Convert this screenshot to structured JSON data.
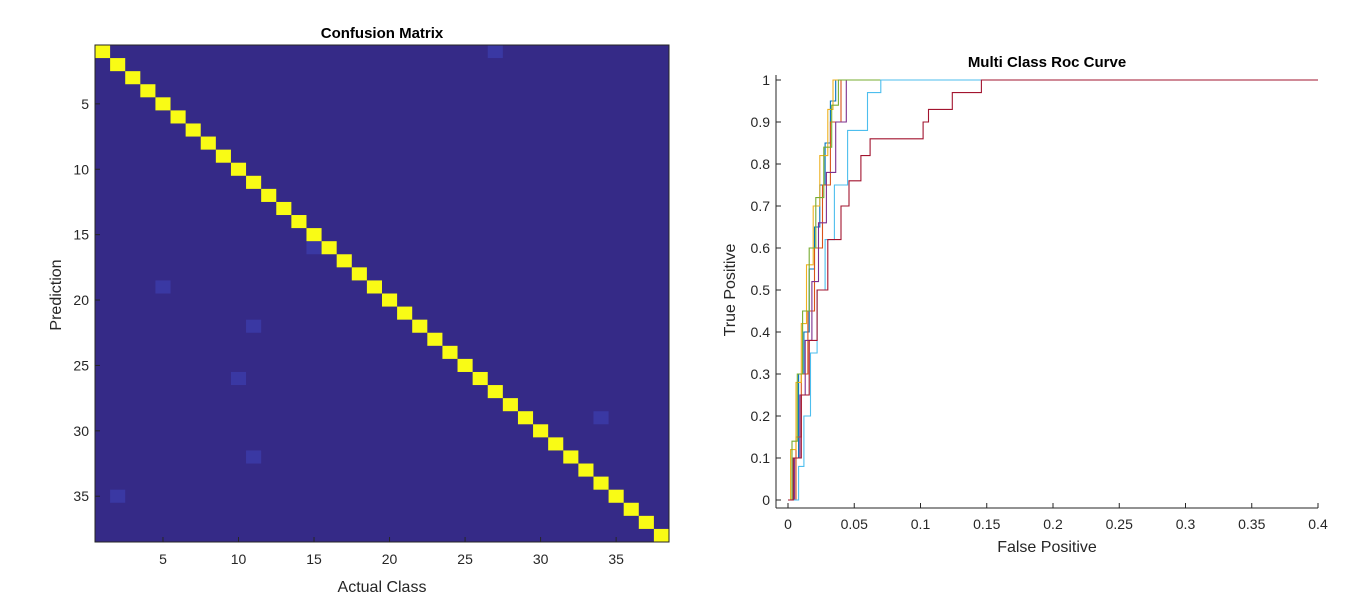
{
  "colors": {
    "background": "#352A87",
    "offdiag": "#3A38A3",
    "diagonal": "#F9FB15",
    "axis": "#262626",
    "roc_series": [
      "#0072BD",
      "#D95319",
      "#EDB120",
      "#7E2F8E",
      "#77AC30",
      "#4DBEEE",
      "#A2142F"
    ]
  },
  "chart_data": [
    {
      "type": "heatmap",
      "title": "Confusion Matrix",
      "xlabel": "Actual Class",
      "ylabel": "Prediction",
      "n_classes": 38,
      "xlim": [
        0.5,
        38.5
      ],
      "ylim": [
        0.5,
        38.5
      ],
      "y_reversed": true,
      "xticks": [
        5,
        10,
        15,
        20,
        25,
        30,
        35
      ],
      "yticks": [
        5,
        10,
        15,
        20,
        25,
        30,
        35
      ],
      "diagonal_value": "high",
      "off_diagonal_cells": [
        {
          "prediction": 1,
          "actual": 27
        },
        {
          "prediction": 16,
          "actual": 15
        },
        {
          "prediction": 19,
          "actual": 5
        },
        {
          "prediction": 22,
          "actual": 11
        },
        {
          "prediction": 26,
          "actual": 10
        },
        {
          "prediction": 29,
          "actual": 34
        },
        {
          "prediction": 32,
          "actual": 11
        },
        {
          "prediction": 35,
          "actual": 2
        }
      ]
    },
    {
      "type": "line",
      "title": "Multi Class Roc Curve",
      "xlabel": "False Positive",
      "ylabel": "True Positive",
      "xlim": [
        0,
        0.4
      ],
      "ylim": [
        0,
        1
      ],
      "xticks": [
        "0",
        "0.05",
        "0.1",
        "0.15",
        "0.2",
        "0.25",
        "0.3",
        "0.35",
        "0.4"
      ],
      "yticks": [
        "0",
        "0.1",
        "0.2",
        "0.3",
        "0.4",
        "0.5",
        "0.6",
        "0.7",
        "0.8",
        "0.9",
        "1"
      ],
      "series": [
        {
          "color": "#0072BD",
          "x": [
            0,
            0.004,
            0.004,
            0.008,
            0.008,
            0.012,
            0.012,
            0.016,
            0.016,
            0.02,
            0.02,
            0.024,
            0.024,
            0.028,
            0.028,
            0.032,
            0.032,
            0.036,
            0.036,
            0.4
          ],
          "y": [
            0,
            0,
            0.1,
            0.1,
            0.3,
            0.3,
            0.4,
            0.4,
            0.55,
            0.55,
            0.65,
            0.65,
            0.75,
            0.75,
            0.85,
            0.85,
            0.95,
            0.95,
            1,
            1
          ]
        },
        {
          "color": "#D95319",
          "x": [
            0,
            0.006,
            0.006,
            0.01,
            0.01,
            0.015,
            0.015,
            0.02,
            0.02,
            0.026,
            0.026,
            0.032,
            0.032,
            0.04,
            0.04,
            0.4
          ],
          "y": [
            0,
            0,
            0.15,
            0.15,
            0.3,
            0.3,
            0.45,
            0.45,
            0.6,
            0.6,
            0.75,
            0.75,
            0.9,
            0.9,
            1,
            1
          ]
        },
        {
          "color": "#EDB120",
          "x": [
            0,
            0.002,
            0.002,
            0.006,
            0.006,
            0.01,
            0.01,
            0.014,
            0.014,
            0.019,
            0.019,
            0.024,
            0.024,
            0.03,
            0.03,
            0.034,
            0.034,
            0.4
          ],
          "y": [
            0,
            0,
            0.12,
            0.12,
            0.28,
            0.28,
            0.42,
            0.42,
            0.56,
            0.56,
            0.7,
            0.7,
            0.82,
            0.82,
            0.93,
            0.93,
            1,
            1
          ]
        },
        {
          "color": "#7E2F8E",
          "x": [
            0,
            0.005,
            0.005,
            0.009,
            0.009,
            0.013,
            0.013,
            0.018,
            0.018,
            0.023,
            0.023,
            0.029,
            0.029,
            0.036,
            0.036,
            0.044,
            0.044,
            0.4
          ],
          "y": [
            0,
            0,
            0.1,
            0.1,
            0.25,
            0.25,
            0.38,
            0.38,
            0.52,
            0.52,
            0.66,
            0.66,
            0.78,
            0.78,
            0.9,
            0.9,
            1,
            1
          ]
        },
        {
          "color": "#77AC30",
          "x": [
            0,
            0.003,
            0.003,
            0.007,
            0.007,
            0.011,
            0.011,
            0.016,
            0.016,
            0.021,
            0.021,
            0.027,
            0.027,
            0.033,
            0.033,
            0.038,
            0.038,
            0.4
          ],
          "y": [
            0,
            0,
            0.14,
            0.14,
            0.3,
            0.3,
            0.45,
            0.45,
            0.6,
            0.6,
            0.72,
            0.72,
            0.84,
            0.84,
            0.94,
            0.94,
            1,
            1
          ]
        },
        {
          "color": "#4DBEEE",
          "x": [
            0,
            0.008,
            0.008,
            0.012,
            0.012,
            0.017,
            0.017,
            0.022,
            0.022,
            0.028,
            0.028,
            0.035,
            0.035,
            0.045,
            0.045,
            0.06,
            0.06,
            0.07,
            0.07,
            0.4
          ],
          "y": [
            0,
            0,
            0.08,
            0.08,
            0.2,
            0.2,
            0.35,
            0.35,
            0.5,
            0.5,
            0.62,
            0.62,
            0.75,
            0.75,
            0.88,
            0.88,
            0.97,
            0.97,
            1,
            1
          ]
        },
        {
          "color": "#A2142F",
          "x": [
            0,
            0.004,
            0.004,
            0.01,
            0.01,
            0.016,
            0.016,
            0.022,
            0.022,
            0.03,
            0.03,
            0.04,
            0.04,
            0.046,
            0.046,
            0.055,
            0.055,
            0.062,
            0.062,
            0.078,
            0.078,
            0.102,
            0.102,
            0.106,
            0.106,
            0.124,
            0.124,
            0.146,
            0.146,
            0.4
          ],
          "y": [
            0,
            0,
            0.1,
            0.1,
            0.25,
            0.25,
            0.38,
            0.38,
            0.5,
            0.5,
            0.62,
            0.62,
            0.7,
            0.7,
            0.76,
            0.76,
            0.82,
            0.82,
            0.86,
            0.86,
            0.86,
            0.86,
            0.9,
            0.9,
            0.93,
            0.93,
            0.97,
            0.97,
            1,
            1
          ]
        }
      ]
    }
  ]
}
